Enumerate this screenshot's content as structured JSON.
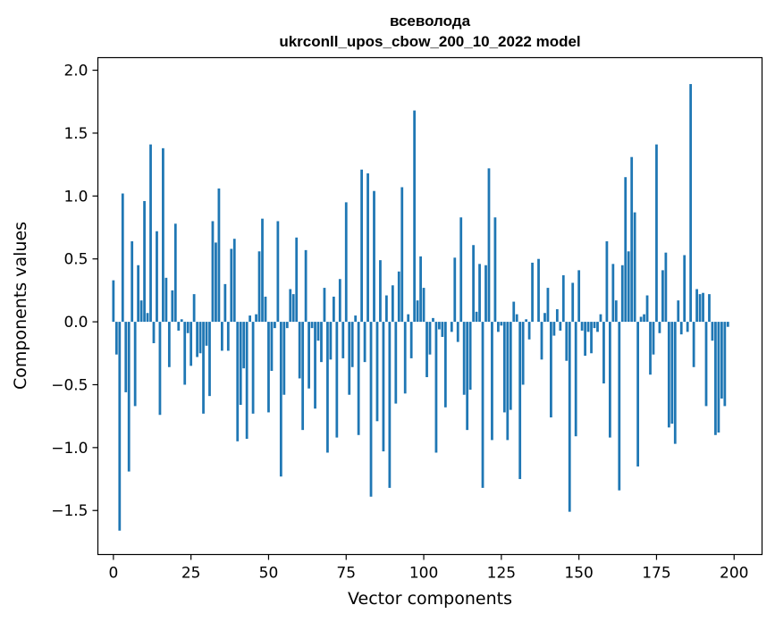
{
  "chart_data": {
    "type": "bar",
    "title_line1": "всеволода",
    "title_line2": "ukrconll_upos_cbow_200_10_2022 model",
    "xlabel": "Vector components",
    "ylabel": "Components values",
    "xlim": [
      -5,
      209
    ],
    "ylim": [
      -1.85,
      2.1
    ],
    "x_ticks": [
      0,
      25,
      50,
      75,
      100,
      125,
      150,
      175,
      200
    ],
    "y_ticks": [
      -1.5,
      -1.0,
      -0.5,
      0.0,
      0.5,
      1.0,
      1.5,
      2.0
    ],
    "y_tick_labels": [
      "−1.5",
      "−1.0",
      "−0.5",
      "0.0",
      "0.5",
      "1.0",
      "1.5",
      "2.0"
    ],
    "bar_color": "#1f77b4",
    "grid": false,
    "values": [
      0.33,
      -0.26,
      -1.66,
      1.02,
      -0.56,
      -1.19,
      0.64,
      -0.67,
      0.45,
      0.17,
      0.96,
      0.07,
      1.41,
      -0.17,
      0.72,
      -0.74,
      1.38,
      0.35,
      -0.36,
      0.25,
      0.78,
      -0.07,
      0.02,
      -0.5,
      -0.09,
      -0.35,
      0.22,
      -0.28,
      -0.25,
      -0.73,
      -0.19,
      -0.59,
      0.8,
      0.63,
      1.06,
      -0.23,
      0.3,
      -0.23,
      0.58,
      0.66,
      -0.95,
      -0.66,
      -0.37,
      -0.93,
      0.05,
      -0.73,
      0.06,
      0.56,
      0.82,
      0.2,
      -0.72,
      -0.39,
      -0.05,
      0.8,
      -1.23,
      -0.58,
      -0.05,
      0.26,
      0.22,
      0.67,
      -0.45,
      -0.86,
      0.57,
      -0.53,
      -0.05,
      -0.69,
      -0.15,
      -0.32,
      0.27,
      -1.04,
      -0.3,
      0.2,
      -0.92,
      0.34,
      -0.29,
      0.95,
      -0.58,
      -0.36,
      0.05,
      -0.9,
      1.21,
      -0.32,
      1.18,
      -1.39,
      1.04,
      -0.79,
      0.49,
      -1.03,
      0.21,
      -1.32,
      0.29,
      -0.65,
      0.4,
      1.07,
      -0.57,
      0.06,
      -0.29,
      1.68,
      0.17,
      0.52,
      0.27,
      -0.44,
      -0.26,
      0.03,
      -1.04,
      -0.06,
      -0.12,
      -0.68,
      0.0,
      -0.08,
      0.51,
      -0.16,
      0.83,
      -0.58,
      -0.86,
      -0.54,
      0.61,
      0.08,
      0.46,
      -1.32,
      0.45,
      1.22,
      -0.94,
      0.83,
      -0.08,
      -0.03,
      -0.72,
      -0.94,
      -0.7,
      0.16,
      0.06,
      -1.25,
      -0.5,
      0.02,
      -0.14,
      0.47,
      0.0,
      0.5,
      -0.3,
      0.07,
      0.27,
      -0.76,
      -0.11,
      0.1,
      -0.07,
      0.37,
      -0.31,
      -1.51,
      0.31,
      -0.91,
      0.41,
      -0.07,
      -0.27,
      -0.08,
      -0.25,
      -0.05,
      -0.08,
      0.06,
      -0.49,
      0.64,
      -0.92,
      0.46,
      0.17,
      -1.34,
      0.45,
      1.15,
      0.56,
      1.31,
      0.87,
      -1.15,
      0.04,
      0.06,
      0.21,
      -0.42,
      -0.26,
      1.41,
      -0.09,
      0.41,
      0.55,
      -0.84,
      -0.81,
      -0.97,
      0.17,
      -0.1,
      0.53,
      -0.08,
      1.89,
      -0.36,
      0.26,
      0.22,
      0.23,
      -0.67,
      0.22,
      -0.15,
      -0.9,
      -0.88,
      -0.61,
      -0.67,
      -0.04
    ]
  }
}
